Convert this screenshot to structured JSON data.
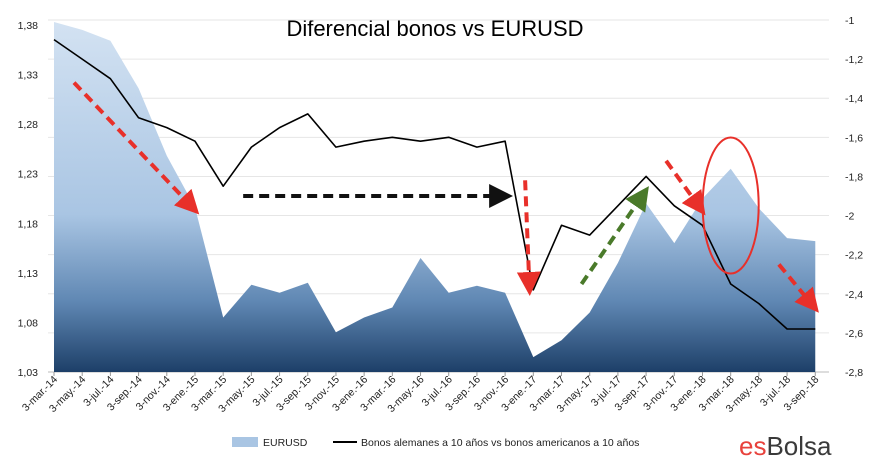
{
  "chart_data": {
    "type": "area",
    "title": "Diferencial bonos vs EURUSD",
    "left_axis": {
      "ticks": [
        "1,38",
        "1,33",
        "1,28",
        "1,23",
        "1,18",
        "1,13",
        "1,08",
        "1,03"
      ],
      "ylim": [
        1.03,
        1.385
      ]
    },
    "right_axis": {
      "ticks": [
        "-1",
        "-1,2",
        "-1,4",
        "-1,6",
        "-1,8",
        "-2",
        "-2,2",
        "-2,4",
        "-2,6",
        "-2,8"
      ],
      "ylim": [
        -2.8,
        -1.0
      ]
    },
    "x_ticks": [
      "3-mar.-14",
      "3-may.-14",
      "3-jul.-14",
      "3-sep.-14",
      "3-nov.-14",
      "3-ene.-15",
      "3-mar.-15",
      "3-may.-15",
      "3-jul.-15",
      "3-sep.-15",
      "3-nov.-15",
      "3-ene.-16",
      "3-mar.-16",
      "3-may.-16",
      "3-jul.-16",
      "3-sep.-16",
      "3-nov.-16",
      "3-ene.-17",
      "3-mar.-17",
      "3-may.-17",
      "3-jul.-17",
      "3-sep.-17",
      "3-nov.-17",
      "3-ene.-18",
      "3-mar.-18",
      "3-may.-18",
      "3-jul.-18",
      "3-sep.-18"
    ],
    "series": [
      {
        "name": "EURUSD",
        "axis": "left",
        "type": "area",
        "color": "#b7cfe8",
        "points": [
          [
            "3-mar.-14",
            1.383
          ],
          [
            "3-may.-14",
            1.375
          ],
          [
            "3-jul.-14",
            1.364
          ],
          [
            "3-sep.-14",
            1.316
          ],
          [
            "3-nov.-14",
            1.248
          ],
          [
            "3-ene.-15",
            1.196
          ],
          [
            "3-mar.-15",
            1.085
          ],
          [
            "3-may.-15",
            1.118
          ],
          [
            "3-jul.-15",
            1.11
          ],
          [
            "3-sep.-15",
            1.12
          ],
          [
            "3-nov.-15",
            1.07
          ],
          [
            "3-ene.-16",
            1.085
          ],
          [
            "3-mar.-16",
            1.095
          ],
          [
            "3-may.-16",
            1.145
          ],
          [
            "3-jul.-16",
            1.11
          ],
          [
            "3-sep.-16",
            1.117
          ],
          [
            "3-nov.-16",
            1.11
          ],
          [
            "3-ene.-17",
            1.045
          ],
          [
            "3-mar.-17",
            1.062
          ],
          [
            "3-may.-17",
            1.09
          ],
          [
            "3-jul.-17",
            1.14
          ],
          [
            "3-sep.-17",
            1.2
          ],
          [
            "3-nov.-17",
            1.16
          ],
          [
            "3-ene.-18",
            1.205
          ],
          [
            "3-mar.-18",
            1.235
          ],
          [
            "3-may.-18",
            1.195
          ],
          [
            "3-jul.-18",
            1.165
          ],
          [
            "3-sep.-18",
            1.162
          ]
        ]
      },
      {
        "name": "Bonos alemanes a 10 años vs bonos americanos a 10 años",
        "axis": "right",
        "type": "line",
        "color": "#000000",
        "points": [
          [
            "3-mar.-14",
            -1.1
          ],
          [
            "3-may.-14",
            -1.2
          ],
          [
            "3-jul.-14",
            -1.3
          ],
          [
            "3-sep.-14",
            -1.5
          ],
          [
            "3-nov.-14",
            -1.55
          ],
          [
            "3-ene.-15",
            -1.62
          ],
          [
            "3-mar.-15",
            -1.85
          ],
          [
            "3-may.-15",
            -1.65
          ],
          [
            "3-jul.-15",
            -1.55
          ],
          [
            "3-sep.-15",
            -1.48
          ],
          [
            "3-nov.-15",
            -1.65
          ],
          [
            "3-ene.-16",
            -1.62
          ],
          [
            "3-mar.-16",
            -1.6
          ],
          [
            "3-may.-16",
            -1.62
          ],
          [
            "3-jul.-16",
            -1.6
          ],
          [
            "3-sep.-16",
            -1.65
          ],
          [
            "3-nov.-16",
            -1.62
          ],
          [
            "3-ene.-17",
            -2.38
          ],
          [
            "3-mar.-17",
            -2.05
          ],
          [
            "3-may.-17",
            -2.1
          ],
          [
            "3-jul.-17",
            -1.95
          ],
          [
            "3-sep.-17",
            -1.8
          ],
          [
            "3-nov.-17",
            -1.95
          ],
          [
            "3-ene.-18",
            -2.05
          ],
          [
            "3-mar.-18",
            -2.35
          ],
          [
            "3-may.-18",
            -2.45
          ],
          [
            "3-jul.-18",
            -2.58
          ],
          [
            "3-sep.-18",
            -2.58
          ]
        ]
      }
    ],
    "annotations": [
      {
        "type": "arrow",
        "style": "dashed",
        "color": "#e8302a",
        "from": [
          "3-mar.-14",
          -1.32
        ],
        "to": [
          "3-ene.-15",
          -1.95
        ]
      },
      {
        "type": "arrow",
        "style": "dashed",
        "color": "#111111",
        "from": [
          "3-mar.-15",
          -1.9
        ],
        "to": [
          "3-nov.-16",
          -1.9
        ]
      },
      {
        "type": "arrow",
        "style": "dashed",
        "color": "#e8302a",
        "from": [
          "3-nov.-16",
          -1.82
        ],
        "to": [
          "3-ene.-17",
          -2.35
        ]
      },
      {
        "type": "arrow",
        "style": "dashed",
        "color": "#4a7a2a",
        "from": [
          "3-mar.-17",
          -2.35
        ],
        "to": [
          "3-sep.-17",
          -1.9
        ]
      },
      {
        "type": "arrow",
        "style": "dashed",
        "color": "#e8302a",
        "from": [
          "3-sep.-17",
          -1.72
        ],
        "to": [
          "3-ene.-18",
          -1.95
        ]
      },
      {
        "type": "ellipse",
        "color": "#e8302a",
        "center": [
          "3-mar.-18",
          -2.0
        ]
      },
      {
        "type": "arrow",
        "style": "dashed",
        "color": "#e8302a",
        "from": [
          "3-may.-18",
          -2.25
        ],
        "to": [
          "3-sep.-18",
          -2.45
        ]
      }
    ],
    "grid": true,
    "legend": "bottom"
  },
  "brand": {
    "part1": "es",
    "part2": "Bolsa"
  }
}
